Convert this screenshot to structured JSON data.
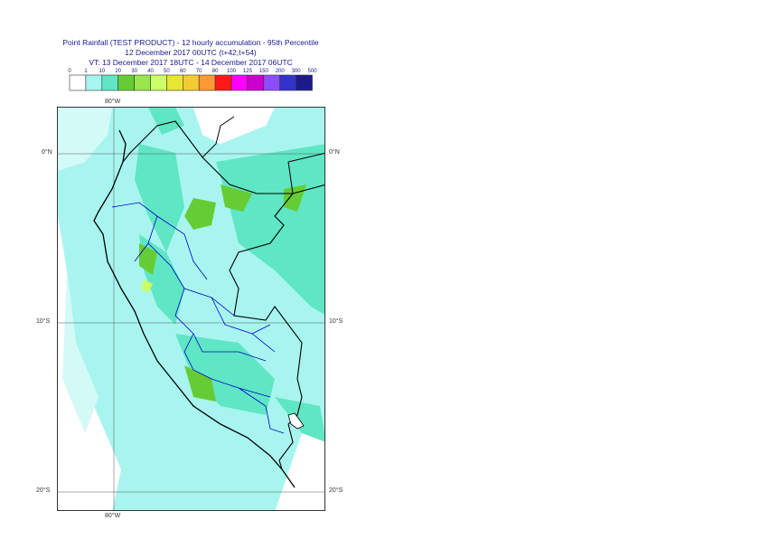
{
  "title": {
    "line1": "Point Rainfall (TEST PRODUCT) - 12 hourly accumulation - 95th Percentile",
    "line2": "12 December 2017 00UTC (t+42,t+54)",
    "line3": "VT: 13 December 2017 18UTC - 14 December 2017 06UTC"
  },
  "legend": {
    "ticks": [
      "0",
      "1",
      "10",
      "20",
      "30",
      "40",
      "50",
      "60",
      "70",
      "80",
      "100",
      "125",
      "150",
      "200",
      "300",
      "500"
    ],
    "colors": [
      "#ffffff",
      "#a8f5f0",
      "#5fe6c4",
      "#66cc33",
      "#99e64d",
      "#ccff66",
      "#e6e633",
      "#f2cc33",
      "#ff9933",
      "#ff1a1a",
      "#ff00ff",
      "#cc00cc",
      "#8c4dff",
      "#3333cc",
      "#1a1a8c"
    ]
  },
  "map": {
    "lat_labels_right": [
      "0°N",
      "10°S",
      "20°S"
    ],
    "lat_labels_left": [
      "0°N",
      "10°S",
      "20°S"
    ],
    "lon_label_top": "80°W",
    "lon_label_bottom": "80°W",
    "colors": {
      "coast": "#000000",
      "boundary": "#0000cc",
      "frame": "#333333",
      "grid": "#555555"
    }
  }
}
